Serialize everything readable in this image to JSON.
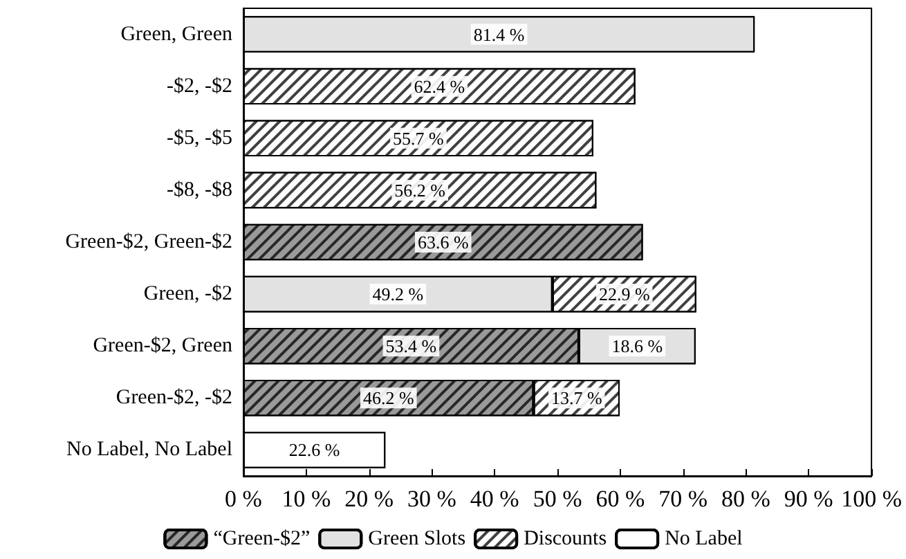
{
  "chart_data": {
    "type": "bar",
    "orientation": "horizontal",
    "stacked": true,
    "legend": "bottom",
    "grid": false,
    "categories": [
      "Green, Green",
      "-$2, -$2",
      "-$5, -$5",
      "-$8, -$8",
      "Green-$2, Green-$2",
      "Green, -$2",
      "Green-$2, Green",
      "Green-$2, -$2",
      "No Label, No Label"
    ],
    "xlim": [
      0,
      100
    ],
    "xticks": [
      {
        "value": 0,
        "label": "0 %"
      },
      {
        "value": 10,
        "label": "10 %"
      },
      {
        "value": 20,
        "label": "20 %"
      },
      {
        "value": 30,
        "label": "30 %"
      },
      {
        "value": 40,
        "label": "40 %"
      },
      {
        "value": 50,
        "label": "50 %"
      },
      {
        "value": 60,
        "label": "60 %"
      },
      {
        "value": 70,
        "label": "70 %"
      },
      {
        "value": 80,
        "label": "80 %"
      },
      {
        "value": 90,
        "label": "90 %"
      },
      {
        "value": 100,
        "label": "100 %"
      }
    ],
    "series": [
      {
        "name": "“Green-$2”",
        "color": "#9a9a9a",
        "values": [
          null,
          null,
          null,
          null,
          63.6,
          null,
          53.4,
          46.2,
          null
        ],
        "value_labels": [
          null,
          null,
          null,
          null,
          "63.6 %",
          null,
          "53.4 %",
          "46.2 %",
          null
        ]
      },
      {
        "name": "Green Slots",
        "color": "#e2e2e2",
        "values": [
          81.4,
          null,
          null,
          null,
          null,
          49.2,
          18.6,
          null,
          null
        ],
        "value_labels": [
          "81.4 %",
          null,
          null,
          null,
          null,
          "49.2 %",
          "18.6 %",
          null,
          null
        ]
      },
      {
        "name": "Discounts",
        "color": "#ffffff",
        "values": [
          null,
          62.4,
          55.7,
          56.2,
          null,
          22.9,
          null,
          13.7,
          null
        ],
        "value_labels": [
          null,
          "62.4 %",
          "55.7 %",
          "56.2 %",
          null,
          "22.9 %",
          null,
          "13.7 %",
          null
        ]
      },
      {
        "name": "No Label",
        "color": "#ffffff",
        "values": [
          null,
          null,
          null,
          null,
          null,
          null,
          null,
          null,
          22.6
        ],
        "value_labels": [
          null,
          null,
          null,
          null,
          null,
          null,
          null,
          null,
          "22.6 %"
        ]
      }
    ]
  }
}
